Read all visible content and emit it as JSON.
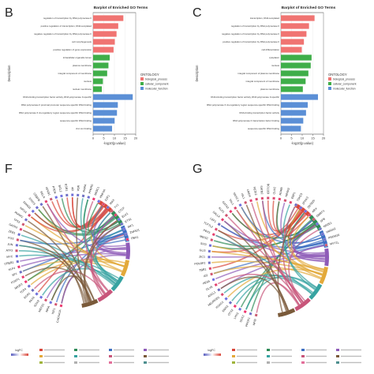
{
  "panels": {
    "B": "B",
    "C": "C",
    "F": "F",
    "G": "G"
  },
  "colors": {
    "bp": "#f07472",
    "cc": "#3fae49",
    "mf": "#5b8fd6",
    "chord_palette": [
      "#d9473b",
      "#2e8b57",
      "#3d6fc2",
      "#8e5bb8",
      "#e3a93a",
      "#36a3a1",
      "#c8557a",
      "#7a5a3a",
      "#9fb43c",
      "#b0b0b0",
      "#e36f9a",
      "#4e8f8f"
    ]
  },
  "chart_data": [
    {
      "type": "bar",
      "orientation": "horizontal",
      "title": "Barplot of Enriched GO Terms",
      "xlabel": "-log10(p.value)",
      "ylabel": "Description",
      "xlim": [
        0,
        20
      ],
      "xticks": [
        "0",
        "5",
        "10",
        "15",
        "20"
      ],
      "legend": {
        "title": "ONTOLOGY",
        "entries": [
          "biological_process",
          "cellular_component",
          "molecular_function"
        ],
        "placement": "right"
      },
      "categories": [
        "regulation of transcription by RNA polymerase II",
        "positive regulation of transcription, DNA-templated",
        "negative regulation of transcription by RNA polymerase II",
        "cell morphogenesis",
        "positive regulation of gene expression",
        "intracellular organelle lumen",
        "plasma membrane",
        "integral component of membrane",
        "nucleus",
        "nuclear membrane",
        "DNA-binding transcription factor activity, RNA polymerase II-specific",
        "RNA polymerase II proximal promoter sequence-specific DNA binding",
        "RNA polymerase II cis-regulatory region sequence-specific DNA binding",
        "sequence-specific DNA binding",
        "zinc ion binding"
      ],
      "ontology": [
        "bp",
        "bp",
        "bp",
        "bp",
        "bp",
        "cc",
        "cc",
        "cc",
        "cc",
        "cc",
        "mf",
        "mf",
        "mf",
        "mf",
        "mf"
      ],
      "values": [
        14.2,
        11.8,
        11.0,
        10.2,
        9.6,
        7.8,
        7.2,
        6.6,
        4.6,
        4.1,
        18.6,
        11.6,
        11.2,
        10.1,
        8.9
      ]
    },
    {
      "type": "bar",
      "orientation": "horizontal",
      "title": "Barplot of Enriched GO Terms",
      "xlabel": "-log10(p.value)",
      "ylabel": "Description",
      "xlim": [
        0,
        20
      ],
      "xticks": [
        "0",
        "5",
        "10",
        "15",
        "20"
      ],
      "legend": {
        "title": "ONTOLOGY",
        "entries": [
          "biological_process",
          "cellular_component",
          "molecular_function"
        ],
        "placement": "right"
      },
      "categories": [
        "transcription, DNA-templated",
        "regulation of transcription by RNA polymerase II",
        "negative regulation of transcription by RNA polymerase II",
        "positive regulation of transcription by RNA polymerase II",
        "cell differentiation",
        "cytoplasm",
        "nucleus",
        "integral component of plasma membrane",
        "integral component of membrane",
        "plasma membrane",
        "DNA-binding transcription factor activity, RNA polymerase II-specific",
        "RNA polymerase II cis-regulatory region sequence-specific DNA binding",
        "DNA-binding transcription factor activity",
        "RNA polymerase II transcription factor binding",
        "sequence-specific DNA binding"
      ],
      "ontology": [
        "bp",
        "bp",
        "bp",
        "bp",
        "bp",
        "cc",
        "cc",
        "cc",
        "cc",
        "cc",
        "mf",
        "mf",
        "mf",
        "mf",
        "mf"
      ],
      "values": [
        15.8,
        13.2,
        12.0,
        10.8,
        9.8,
        14.4,
        14.0,
        12.9,
        11.6,
        10.3,
        17.4,
        12.6,
        11.8,
        10.5,
        9.4
      ]
    },
    {
      "type": "chord",
      "legend": {
        "title": "logFC",
        "placement": "bottom"
      },
      "genes": [
        "CACNA1A",
        "IGF1",
        "NFIA",
        "MEF2C",
        "SOX9",
        "PAX6",
        "EGR1",
        "TCF4",
        "NR2F2",
        "FOXP1",
        "SP1",
        "KLF4",
        "CREB1",
        "MYC",
        "ATF3",
        "JUN",
        "FOS",
        "ZEB1",
        "GATA3",
        "TP53",
        "RUNX2",
        "HIF1A",
        "SMAD3",
        "STAT3",
        "CEBPB",
        "RELA",
        "NFKB1",
        "PTEN",
        "BCL2",
        "ESR1",
        "AR",
        "VDR",
        "RARA",
        "PPARG",
        "NR3C1",
        "HNF4A",
        "E2F1",
        "MAX",
        "YY1",
        "CTCF",
        "ELK1",
        "ETS1",
        "IRF1",
        "ZNF521",
        "PBX1"
      ]
    },
    {
      "type": "chord",
      "legend": {
        "title": "logFC",
        "placement": "bottom"
      },
      "genes": [
        "NFIB",
        "PROX1",
        "SOX2",
        "LHX2",
        "OTX2",
        "EMX2",
        "FOXG1",
        "NEUROD1",
        "ASCL1",
        "DLX5",
        "HES5",
        "ID2",
        "TBR1",
        "POU3F2",
        "ZIC1",
        "GLI3",
        "SIX3",
        "MEIS2",
        "PBX3",
        "TCF7L2",
        "LEF1",
        "SALL4",
        "KLF5",
        "GATA2",
        "TAL1",
        "NKX2-1",
        "ISL1",
        "LMO4",
        "FEZF2",
        "SATB2",
        "BCL11B",
        "CUX2",
        "RORB",
        "NR4A2",
        "EBF1",
        "TSHZ3",
        "ZFHX3",
        "ZBTB20",
        "ARX",
        "DMRT3",
        "SP8",
        "NR2E1",
        "HMGA2",
        "PRDM16",
        "MYT1L"
      ]
    }
  ]
}
